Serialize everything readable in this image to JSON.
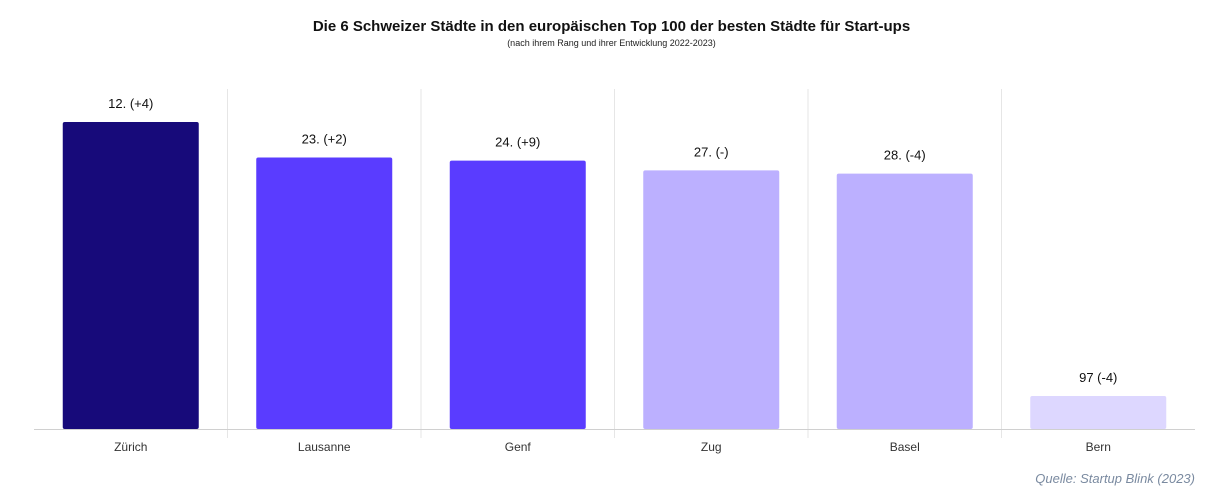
{
  "chart_data": {
    "type": "bar",
    "title": "Die 6 Schweizer Städte in den europäischen Top 100 der besten Städte für Start-ups",
    "subtitle": "(nach ihrem Rang und ihrer Entwicklung 2022-2023)",
    "categories": [
      "Zürich",
      "Lausanne",
      "Genf",
      "Zug",
      "Basel",
      "Bern"
    ],
    "values": [
      12,
      23,
      24,
      27,
      28,
      97
    ],
    "data_labels": [
      "12. (+4)",
      "23. (+2)",
      "24. (+9)",
      "27. (-)",
      "28. (-4)",
      "97 (-4)"
    ],
    "colors": [
      "#170a7a",
      "#5a3cff",
      "#5a3cff",
      "#bcb0ff",
      "#bcb0ff",
      "#ddd7ff"
    ],
    "grid": "vertical separators",
    "source": "Quelle: Startup Blink (2023)"
  }
}
